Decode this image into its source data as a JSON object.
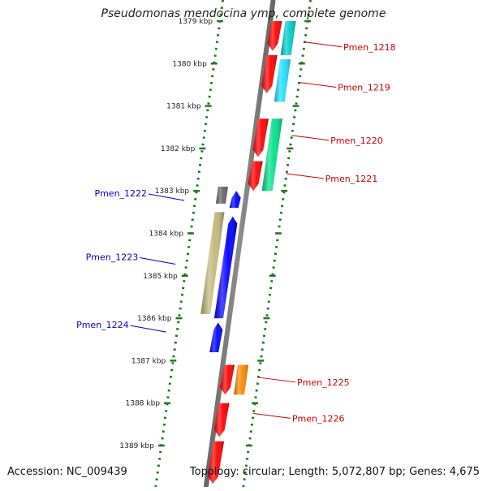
{
  "title": "Pseudomonas mendocina ymp, complete genome",
  "footer": {
    "accession": "Accession: NC_009439",
    "summary": "Topology: circular; Length: 5,072,807 bp; Genes: 4,675"
  },
  "colors": {
    "backbone": "#808080",
    "ruler": "#1f7a1f",
    "ruler_label": "#222222",
    "label_red": "#cc0000",
    "label_blue": "#0000cc"
  },
  "ruler": {
    "unit": "kbp",
    "ticks": [
      {
        "kbp": 1379,
        "label": "1379 kbp"
      },
      {
        "kbp": 1380,
        "label": "1380 kbp"
      },
      {
        "kbp": 1381,
        "label": "1381 kbp"
      },
      {
        "kbp": 1382,
        "label": "1382 kbp"
      },
      {
        "kbp": 1383,
        "label": "1383 kbp"
      },
      {
        "kbp": 1384,
        "label": "1384 kbp"
      },
      {
        "kbp": 1385,
        "label": "1385 kbp"
      },
      {
        "kbp": 1386,
        "label": "1386 kbp"
      },
      {
        "kbp": 1387,
        "label": "1387 kbp"
      },
      {
        "kbp": 1388,
        "label": "1388 kbp"
      },
      {
        "kbp": 1389,
        "label": "1389 kbp"
      }
    ]
  },
  "features": [
    {
      "ring": "fwd-cds",
      "start": 1379.0,
      "end": 1379.7,
      "color": "#ff0000"
    },
    {
      "ring": "fwd-cds",
      "start": 1379.8,
      "end": 1380.7,
      "color": "#ff0000"
    },
    {
      "ring": "fwd-cds",
      "start": 1381.3,
      "end": 1382.2,
      "color": "#ff0000"
    },
    {
      "ring": "fwd-cds",
      "start": 1382.3,
      "end": 1383.0,
      "color": "#ff0000"
    },
    {
      "ring": "fwd-cds",
      "start": 1387.1,
      "end": 1387.8,
      "color": "#ff0000"
    },
    {
      "ring": "fwd-cds",
      "start": 1388.0,
      "end": 1388.8,
      "color": "#ff0000"
    },
    {
      "ring": "fwd-cds",
      "start": 1388.9,
      "end": 1389.9,
      "color": "#ff0000"
    },
    {
      "ring": "fwd-cog",
      "start": 1379.0,
      "end": 1379.8,
      "color": "#00cccc"
    },
    {
      "ring": "fwd-cog",
      "start": 1379.9,
      "end": 1380.9,
      "color": "#22ddff"
    },
    {
      "ring": "fwd-cog",
      "start": 1381.3,
      "end": 1383.0,
      "color": "#00e08a"
    },
    {
      "ring": "fwd-cog",
      "start": 1387.1,
      "end": 1387.8,
      "color": "#ff8800"
    },
    {
      "ring": "rev-cds",
      "start": 1383.0,
      "end": 1383.4,
      "color": "#0000ff"
    },
    {
      "ring": "rev-cds",
      "start": 1383.6,
      "end": 1386.0,
      "color": "#0000ff"
    },
    {
      "ring": "rev-cds",
      "start": 1386.1,
      "end": 1386.8,
      "color": "#0000ff"
    },
    {
      "ring": "rev-cog",
      "start": 1382.9,
      "end": 1383.3,
      "color": "#666666"
    },
    {
      "ring": "rev-cog",
      "start": 1383.5,
      "end": 1385.9,
      "color": "#c2b87a"
    }
  ],
  "labels": [
    {
      "text": "Pmen_1218",
      "side": "right",
      "kbp": 1379.55,
      "color": "#cc0000"
    },
    {
      "text": "Pmen_1219",
      "side": "right",
      "kbp": 1380.5,
      "color": "#cc0000"
    },
    {
      "text": "Pmen_1220",
      "side": "right",
      "kbp": 1381.75,
      "color": "#cc0000"
    },
    {
      "text": "Pmen_1221",
      "side": "right",
      "kbp": 1382.65,
      "color": "#cc0000"
    },
    {
      "text": "Pmen_1222",
      "side": "left",
      "kbp": 1383.15,
      "color": "#0000cc"
    },
    {
      "text": "Pmen_1223",
      "side": "left",
      "kbp": 1384.65,
      "color": "#0000cc"
    },
    {
      "text": "Pmen_1224",
      "side": "left",
      "kbp": 1386.25,
      "color": "#0000cc"
    },
    {
      "text": "Pmen_1225",
      "side": "right",
      "kbp": 1387.45,
      "color": "#cc0000"
    },
    {
      "text": "Pmen_1226",
      "side": "right",
      "kbp": 1388.3,
      "color": "#cc0000"
    }
  ]
}
